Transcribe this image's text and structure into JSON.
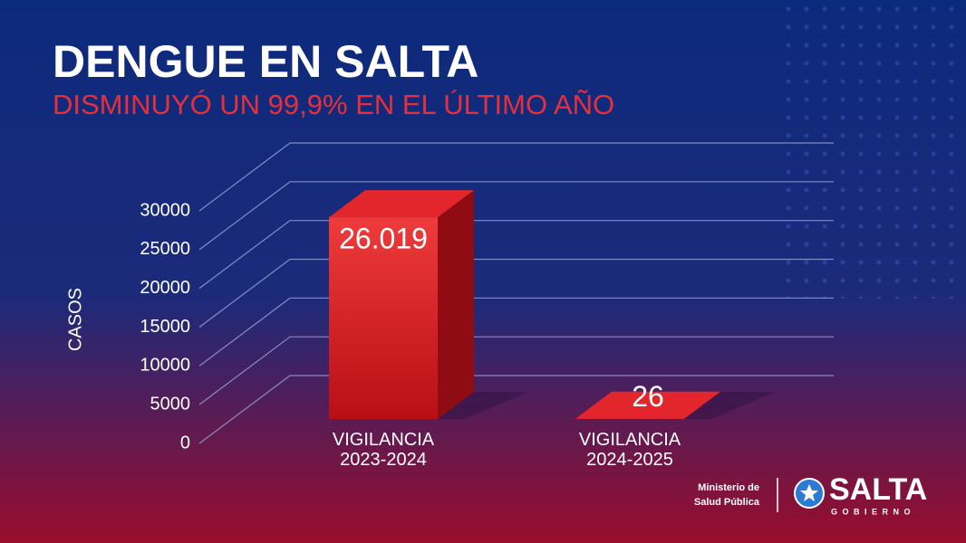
{
  "chart_data": {
    "type": "bar3d",
    "title": "DENGUE EN SALTA",
    "subtitle": "DISMINUYÓ UN 99,9% EN EL ÚLTIMO AÑO",
    "ylabel": "CASOS",
    "categories": [
      "VIGILANCIA 2023-2024",
      "VIGILANCIA 2024-2025"
    ],
    "values": [
      26019,
      26
    ],
    "value_labels": [
      "26.019",
      "26"
    ],
    "color": "#e3262b",
    "ylim": [
      0,
      30000
    ],
    "yticks": [
      0,
      5000,
      10000,
      15000,
      20000,
      25000,
      30000
    ],
    "grid": true
  },
  "footer": {
    "ministry": [
      "Ministerio de",
      "Salud Pública"
    ],
    "brand": "SALTA",
    "brand_sub": "GOBIERNO"
  }
}
